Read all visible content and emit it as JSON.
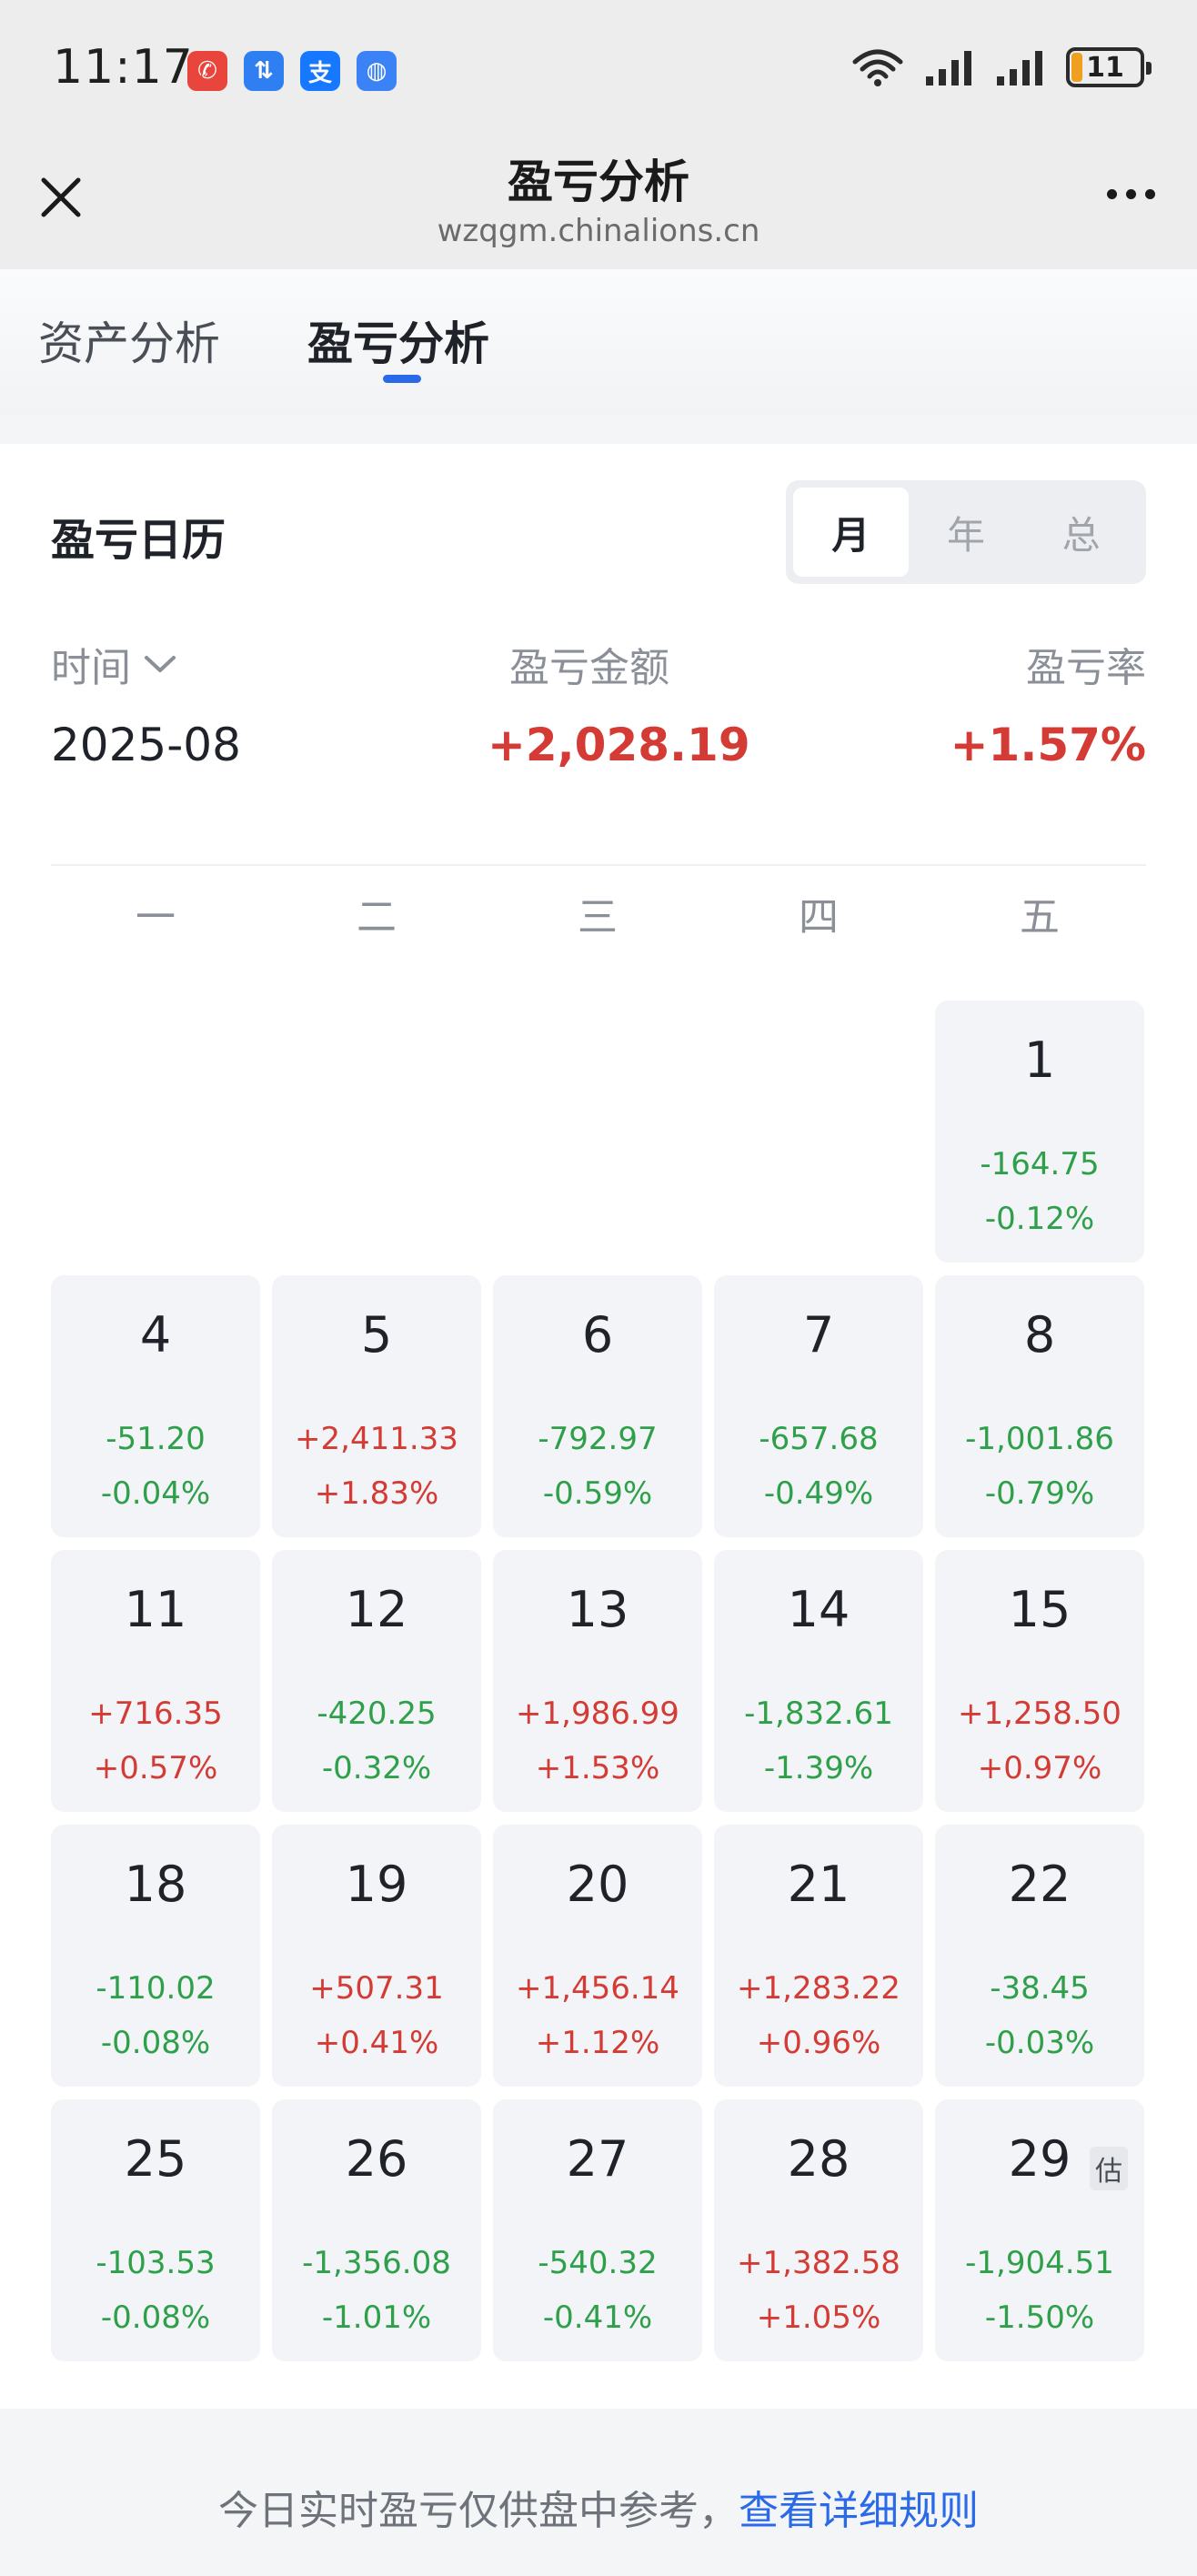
{
  "status_bar": {
    "time": "11:17",
    "battery": "11",
    "apps": [
      {
        "glyph": "✆",
        "color": "#e8453c",
        "name": "phone-app-icon"
      },
      {
        "glyph": "⇅",
        "color": "#2f7ff2",
        "name": "transfer-app-icon"
      },
      {
        "glyph": "支",
        "color": "#1677ff",
        "name": "alipay-app-icon"
      },
      {
        "glyph": "◍",
        "color": "#3b82f6",
        "name": "browser-app-icon"
      }
    ]
  },
  "titlebar": {
    "title": "盈亏分析",
    "domain": "wzqgm.chinalions.cn"
  },
  "tabs": [
    {
      "label": "资产分析",
      "active": false
    },
    {
      "label": "盈亏分析",
      "active": true
    }
  ],
  "calendar": {
    "title": "盈亏日历",
    "segments": [
      {
        "label": "月",
        "active": true
      },
      {
        "label": "年",
        "active": false
      },
      {
        "label": "总",
        "active": false
      }
    ],
    "summary": {
      "time_label": "时间",
      "amount_label": "盈亏金额",
      "rate_label": "盈亏率",
      "month": "2025-08",
      "amount": "+2,028.19",
      "rate": "+1.57%"
    },
    "weekdays": [
      "一",
      "二",
      "三",
      "四",
      "五"
    ],
    "estimate_badge": "估",
    "days": [
      {
        "day": "1",
        "amount": "-164.75",
        "rate": "-0.12%",
        "col": 4,
        "row": 0
      },
      {
        "day": "4",
        "amount": "-51.20",
        "rate": "-0.04%",
        "col": 0,
        "row": 1
      },
      {
        "day": "5",
        "amount": "+2,411.33",
        "rate": "+1.83%",
        "col": 1,
        "row": 1
      },
      {
        "day": "6",
        "amount": "-792.97",
        "rate": "-0.59%",
        "col": 2,
        "row": 1
      },
      {
        "day": "7",
        "amount": "-657.68",
        "rate": "-0.49%",
        "col": 3,
        "row": 1
      },
      {
        "day": "8",
        "amount": "-1,001.86",
        "rate": "-0.79%",
        "col": 4,
        "row": 1
      },
      {
        "day": "11",
        "amount": "+716.35",
        "rate": "+0.57%",
        "col": 0,
        "row": 2
      },
      {
        "day": "12",
        "amount": "-420.25",
        "rate": "-0.32%",
        "col": 1,
        "row": 2
      },
      {
        "day": "13",
        "amount": "+1,986.99",
        "rate": "+1.53%",
        "col": 2,
        "row": 2
      },
      {
        "day": "14",
        "amount": "-1,832.61",
        "rate": "-1.39%",
        "col": 3,
        "row": 2
      },
      {
        "day": "15",
        "amount": "+1,258.50",
        "rate": "+0.97%",
        "col": 4,
        "row": 2
      },
      {
        "day": "18",
        "amount": "-110.02",
        "rate": "-0.08%",
        "col": 0,
        "row": 3
      },
      {
        "day": "19",
        "amount": "+507.31",
        "rate": "+0.41%",
        "col": 1,
        "row": 3
      },
      {
        "day": "20",
        "amount": "+1,456.14",
        "rate": "+1.12%",
        "col": 2,
        "row": 3
      },
      {
        "day": "21",
        "amount": "+1,283.22",
        "rate": "+0.96%",
        "col": 3,
        "row": 3
      },
      {
        "day": "22",
        "amount": "-38.45",
        "rate": "-0.03%",
        "col": 4,
        "row": 3
      },
      {
        "day": "25",
        "amount": "-103.53",
        "rate": "-0.08%",
        "col": 0,
        "row": 4
      },
      {
        "day": "26",
        "amount": "-1,356.08",
        "rate": "-1.01%",
        "col": 1,
        "row": 4
      },
      {
        "day": "27",
        "amount": "-540.32",
        "rate": "-0.41%",
        "col": 2,
        "row": 4
      },
      {
        "day": "28",
        "amount": "+1,382.58",
        "rate": "+1.05%",
        "col": 3,
        "row": 4
      },
      {
        "day": "29",
        "amount": "-1,904.51",
        "rate": "-1.50%",
        "col": 4,
        "row": 4,
        "estimated": true
      }
    ]
  },
  "footer": {
    "note": "今日实时盈亏仅供盘中参考，",
    "link": "查看详细规则"
  },
  "colors": {
    "gain": "#d43b34",
    "loss": "#2ea04a",
    "accent": "#2a6ae8"
  }
}
